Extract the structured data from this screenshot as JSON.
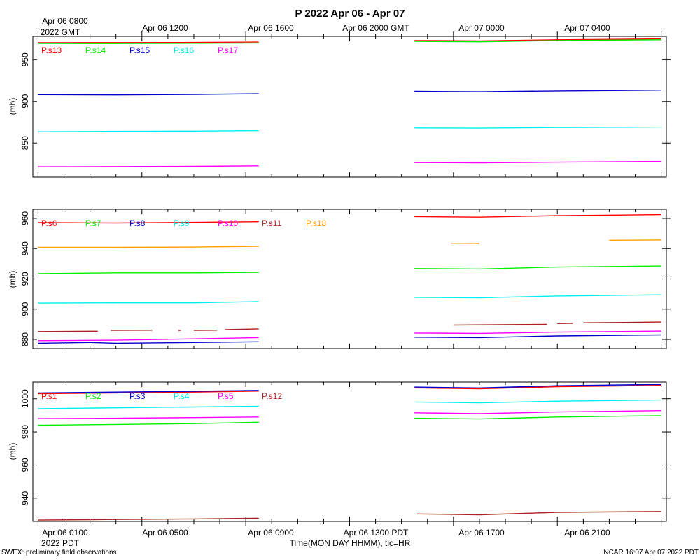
{
  "page": {
    "title": "P 2022 Apr 06 - Apr 07",
    "top_time_labels": [
      "Apr 06 0800",
      "Apr 06 1200",
      "Apr 06 1600",
      "Apr 06 2000 GMT",
      "Apr 07 0000",
      "Apr 07 0400"
    ],
    "top_time_sublabel": "2022 GMT",
    "bottom_time_labels": [
      "Apr 06 0100",
      "Apr 06 0500",
      "Apr 06 0900",
      "Apr 06 1300 PDT",
      "Apr 06 1700",
      "Apr 06 2100"
    ],
    "bottom_time_sublabel": "2022 PDT",
    "xlabel": "Time(MON DAY HHMM), tic=HR",
    "footer_left": "SWEX: preliminary field observations",
    "footer_right": "NCAR 16:07 Apr 07 2022 PDT",
    "ylabel": "(mb)"
  },
  "chart_data": [
    {
      "type": "line",
      "name": "upper-panel",
      "ylabel": "(mb)",
      "ylim": [
        809,
        978
      ],
      "yticks": [
        850,
        900,
        950
      ],
      "x_hours_pdt_range": [
        -0.2,
        24.2
      ],
      "legend": [
        {
          "name": "P.s13",
          "color": "#ff0000"
        },
        {
          "name": "P.s14",
          "color": "#00ee00"
        },
        {
          "name": "P.s15",
          "color": "#0000cc"
        },
        {
          "name": "P.s16",
          "color": "#00eeee"
        },
        {
          "name": "P.s17",
          "color": "#ff00ff"
        }
      ],
      "series": [
        {
          "name": "P.s13",
          "color": "#ff0000",
          "points": [
            [
              0,
              970.5
            ],
            [
              3,
              970.6
            ],
            [
              6,
              970.8
            ],
            [
              8.5,
              971.2
            ],
            null,
            [
              14.5,
              973.0
            ],
            [
              17,
              972.6
            ],
            [
              20,
              974.0
            ],
            [
              24,
              975.0
            ]
          ]
        },
        {
          "name": "P.s14",
          "color": "#00ee00",
          "points": [
            [
              0,
              969.5
            ],
            [
              3,
              969.4
            ],
            [
              6,
              969.8
            ],
            [
              8.5,
              970.1
            ],
            null,
            [
              14.5,
              972.0
            ],
            [
              17,
              971.5
            ],
            [
              20,
              973.0
            ],
            [
              24,
              974.0
            ]
          ]
        },
        {
          "name": "P.s15",
          "color": "#0000cc",
          "points": [
            [
              0,
              908.0
            ],
            [
              3,
              907.6
            ],
            [
              6,
              908.2
            ],
            [
              8.5,
              909.0
            ],
            null,
            [
              14.5,
              912.0
            ],
            [
              17,
              911.5
            ],
            [
              20,
              912.5
            ],
            [
              24,
              913.5
            ]
          ]
        },
        {
          "name": "P.s16",
          "color": "#00eeee",
          "points": [
            [
              0,
              863.5
            ],
            [
              3,
              864.0
            ],
            [
              6,
              864.2
            ],
            [
              8.5,
              864.8
            ],
            null,
            [
              14.5,
              868.0
            ],
            [
              17,
              867.8
            ],
            [
              20,
              868.5
            ],
            [
              24,
              869.0
            ]
          ]
        },
        {
          "name": "P.s17",
          "color": "#ff00ff",
          "points": [
            [
              0,
              821.5
            ],
            [
              3,
              821.8
            ],
            [
              6,
              822.0
            ],
            [
              8.5,
              822.6
            ],
            null,
            [
              14.5,
              826.5
            ],
            [
              17,
              826.2
            ],
            [
              20,
              827.0
            ],
            [
              24,
              827.8
            ]
          ]
        }
      ]
    },
    {
      "type": "line",
      "name": "middle-panel",
      "ylabel": "(mb)",
      "ylim": [
        874,
        966
      ],
      "yticks": [
        880,
        900,
        920,
        940,
        960
      ],
      "x_hours_pdt_range": [
        -0.2,
        24.2
      ],
      "legend": [
        {
          "name": "P.s6",
          "color": "#ff0000"
        },
        {
          "name": "P.s7",
          "color": "#00ee00"
        },
        {
          "name": "P.s8",
          "color": "#0000cc"
        },
        {
          "name": "P.s9",
          "color": "#00eeee"
        },
        {
          "name": "P.s10",
          "color": "#ff00ff"
        },
        {
          "name": "P.s11",
          "color": "#aa2222"
        },
        {
          "name": "P.s18",
          "color": "#ffa000"
        }
      ],
      "series": [
        {
          "name": "P.s6",
          "color": "#ff0000",
          "points": [
            [
              0,
              957.2
            ],
            [
              3,
              957.0
            ],
            [
              6,
              957.4
            ],
            [
              8.5,
              957.8
            ],
            null,
            [
              14.5,
              961.2
            ],
            [
              17,
              960.8
            ],
            [
              20,
              961.8
            ],
            [
              24,
              962.5
            ]
          ]
        },
        {
          "name": "P.s7",
          "color": "#00ee00",
          "points": [
            [
              0,
              923.5
            ],
            [
              3,
              924.0
            ],
            [
              6,
              924.0
            ],
            [
              8.5,
              924.4
            ],
            null,
            [
              14.5,
              926.8
            ],
            [
              17,
              926.5
            ],
            [
              20,
              927.8
            ],
            [
              24,
              928.5
            ]
          ]
        },
        {
          "name": "P.s8",
          "color": "#0000cc",
          "points": [
            [
              0,
              877.5
            ],
            [
              2,
              878.0
            ],
            [
              3,
              877.5
            ],
            [
              6,
              878.0
            ],
            [
              8.5,
              878.5
            ],
            null,
            [
              14.5,
              881.5
            ],
            [
              17,
              881.2
            ],
            [
              20,
              882.3
            ],
            [
              24,
              883.0
            ]
          ]
        },
        {
          "name": "P.s9",
          "color": "#00eeee",
          "points": [
            [
              0,
              904.0
            ],
            [
              3,
              904.2
            ],
            [
              6,
              904.2
            ],
            [
              8.5,
              905.0
            ],
            null,
            [
              14.5,
              907.8
            ],
            [
              17,
              907.5
            ],
            [
              20,
              908.7
            ],
            [
              24,
              909.5
            ]
          ]
        },
        {
          "name": "P.s10",
          "color": "#ff00ff",
          "points": [
            [
              0,
              879.2
            ],
            [
              3,
              879.5
            ],
            [
              6,
              880.4
            ],
            [
              8.5,
              881.2
            ],
            null,
            [
              14.5,
              884.2
            ],
            [
              17,
              884.0
            ],
            [
              20,
              884.8
            ],
            [
              24,
              885.5
            ]
          ]
        },
        {
          "name": "P.s11",
          "color": "#aa2222",
          "points": [
            [
              0,
              885.2
            ],
            [
              2.3,
              885.4
            ],
            null,
            [
              2.8,
              886.0
            ],
            [
              4.4,
              886.1
            ],
            null,
            [
              5.4,
              886.0
            ],
            [
              5.5,
              886.0
            ],
            null,
            [
              6.0,
              886.0
            ],
            [
              6.9,
              886.1
            ],
            null,
            [
              7.2,
              886.5
            ],
            [
              8.5,
              887.0
            ],
            null,
            [
              16.0,
              889.5
            ],
            [
              19.6,
              890.0
            ],
            null,
            [
              20.0,
              890.5
            ],
            [
              20.6,
              890.7
            ],
            null,
            [
              21.0,
              891.0
            ],
            [
              24,
              891.5
            ]
          ]
        },
        {
          "name": "P.s18",
          "color": "#ffa000",
          "points": [
            [
              0,
              940.8
            ],
            [
              3,
              940.8
            ],
            [
              6,
              941.0
            ],
            [
              8.5,
              941.5
            ],
            null,
            [
              15.9,
              943.2
            ],
            [
              17.0,
              943.3
            ],
            null,
            [
              22.0,
              945.5
            ],
            [
              24,
              945.7
            ]
          ]
        }
      ]
    },
    {
      "type": "line",
      "name": "lower-panel",
      "ylabel": "(mb)",
      "ylim": [
        926,
        1010
      ],
      "yticks": [
        940,
        960,
        980,
        1000
      ],
      "x_hours_pdt_range": [
        -0.2,
        24.2
      ],
      "legend": [
        {
          "name": "P.s1",
          "color": "#ff0000"
        },
        {
          "name": "P.s2",
          "color": "#00ee00"
        },
        {
          "name": "P.s3",
          "color": "#0000cc"
        },
        {
          "name": "P.s4",
          "color": "#00eeee"
        },
        {
          "name": "P.s5",
          "color": "#ff00ff"
        },
        {
          "name": "P.s12",
          "color": "#aa2222"
        }
      ],
      "series": [
        {
          "name": "P.s1",
          "color": "#ff0000",
          "points": [
            [
              0,
              1003.0
            ],
            [
              3,
              1003.5
            ],
            [
              6,
              1004.0
            ],
            [
              8.5,
              1004.6
            ],
            null,
            [
              14.5,
              1006.5
            ],
            [
              17,
              1006.0
            ],
            [
              20,
              1007.2
            ],
            [
              24,
              1008.0
            ]
          ]
        },
        {
          "name": "P.s2",
          "color": "#00ee00",
          "points": [
            [
              0,
              984.0
            ],
            [
              3,
              984.5
            ],
            [
              6,
              985.0
            ],
            [
              8.5,
              985.8
            ],
            null,
            [
              14.5,
              988.2
            ],
            [
              17,
              987.8
            ],
            [
              20,
              989.0
            ],
            [
              24,
              989.8
            ]
          ]
        },
        {
          "name": "P.s3",
          "color": "#0000cc",
          "points": [
            [
              0,
              1003.5
            ],
            [
              3,
              1004.0
            ],
            [
              6,
              1004.5
            ],
            [
              8.5,
              1005.0
            ],
            null,
            [
              14.5,
              1007.0
            ],
            [
              17,
              1006.5
            ],
            [
              20,
              1007.8
            ],
            [
              24,
              1008.6
            ]
          ]
        },
        {
          "name": "P.s4",
          "color": "#00eeee",
          "points": [
            [
              0,
              994.0
            ],
            [
              3,
              994.5
            ],
            [
              6,
              995.0
            ],
            [
              8.5,
              995.5
            ],
            null,
            [
              14.5,
              998.0
            ],
            [
              17,
              997.5
            ],
            [
              20,
              998.5
            ],
            [
              24,
              999.2
            ]
          ]
        },
        {
          "name": "P.s5",
          "color": "#ff00ff",
          "points": [
            [
              0,
              988.0
            ],
            [
              3,
              988.2
            ],
            [
              6,
              988.6
            ],
            [
              8.5,
              989.0
            ],
            null,
            [
              14.5,
              991.5
            ],
            [
              17,
              991.0
            ],
            [
              20,
              992.0
            ],
            [
              24,
              992.8
            ]
          ]
        },
        {
          "name": "P.s12",
          "color": "#aa2222",
          "points": [
            [
              0,
              926.8
            ],
            [
              3,
              927.2
            ],
            [
              6,
              927.5
            ],
            [
              8.5,
              928.0
            ],
            null,
            [
              14.6,
              930.5
            ],
            [
              17,
              930.0
            ],
            [
              20,
              931.5
            ],
            [
              24,
              932.0
            ]
          ]
        }
      ]
    }
  ]
}
